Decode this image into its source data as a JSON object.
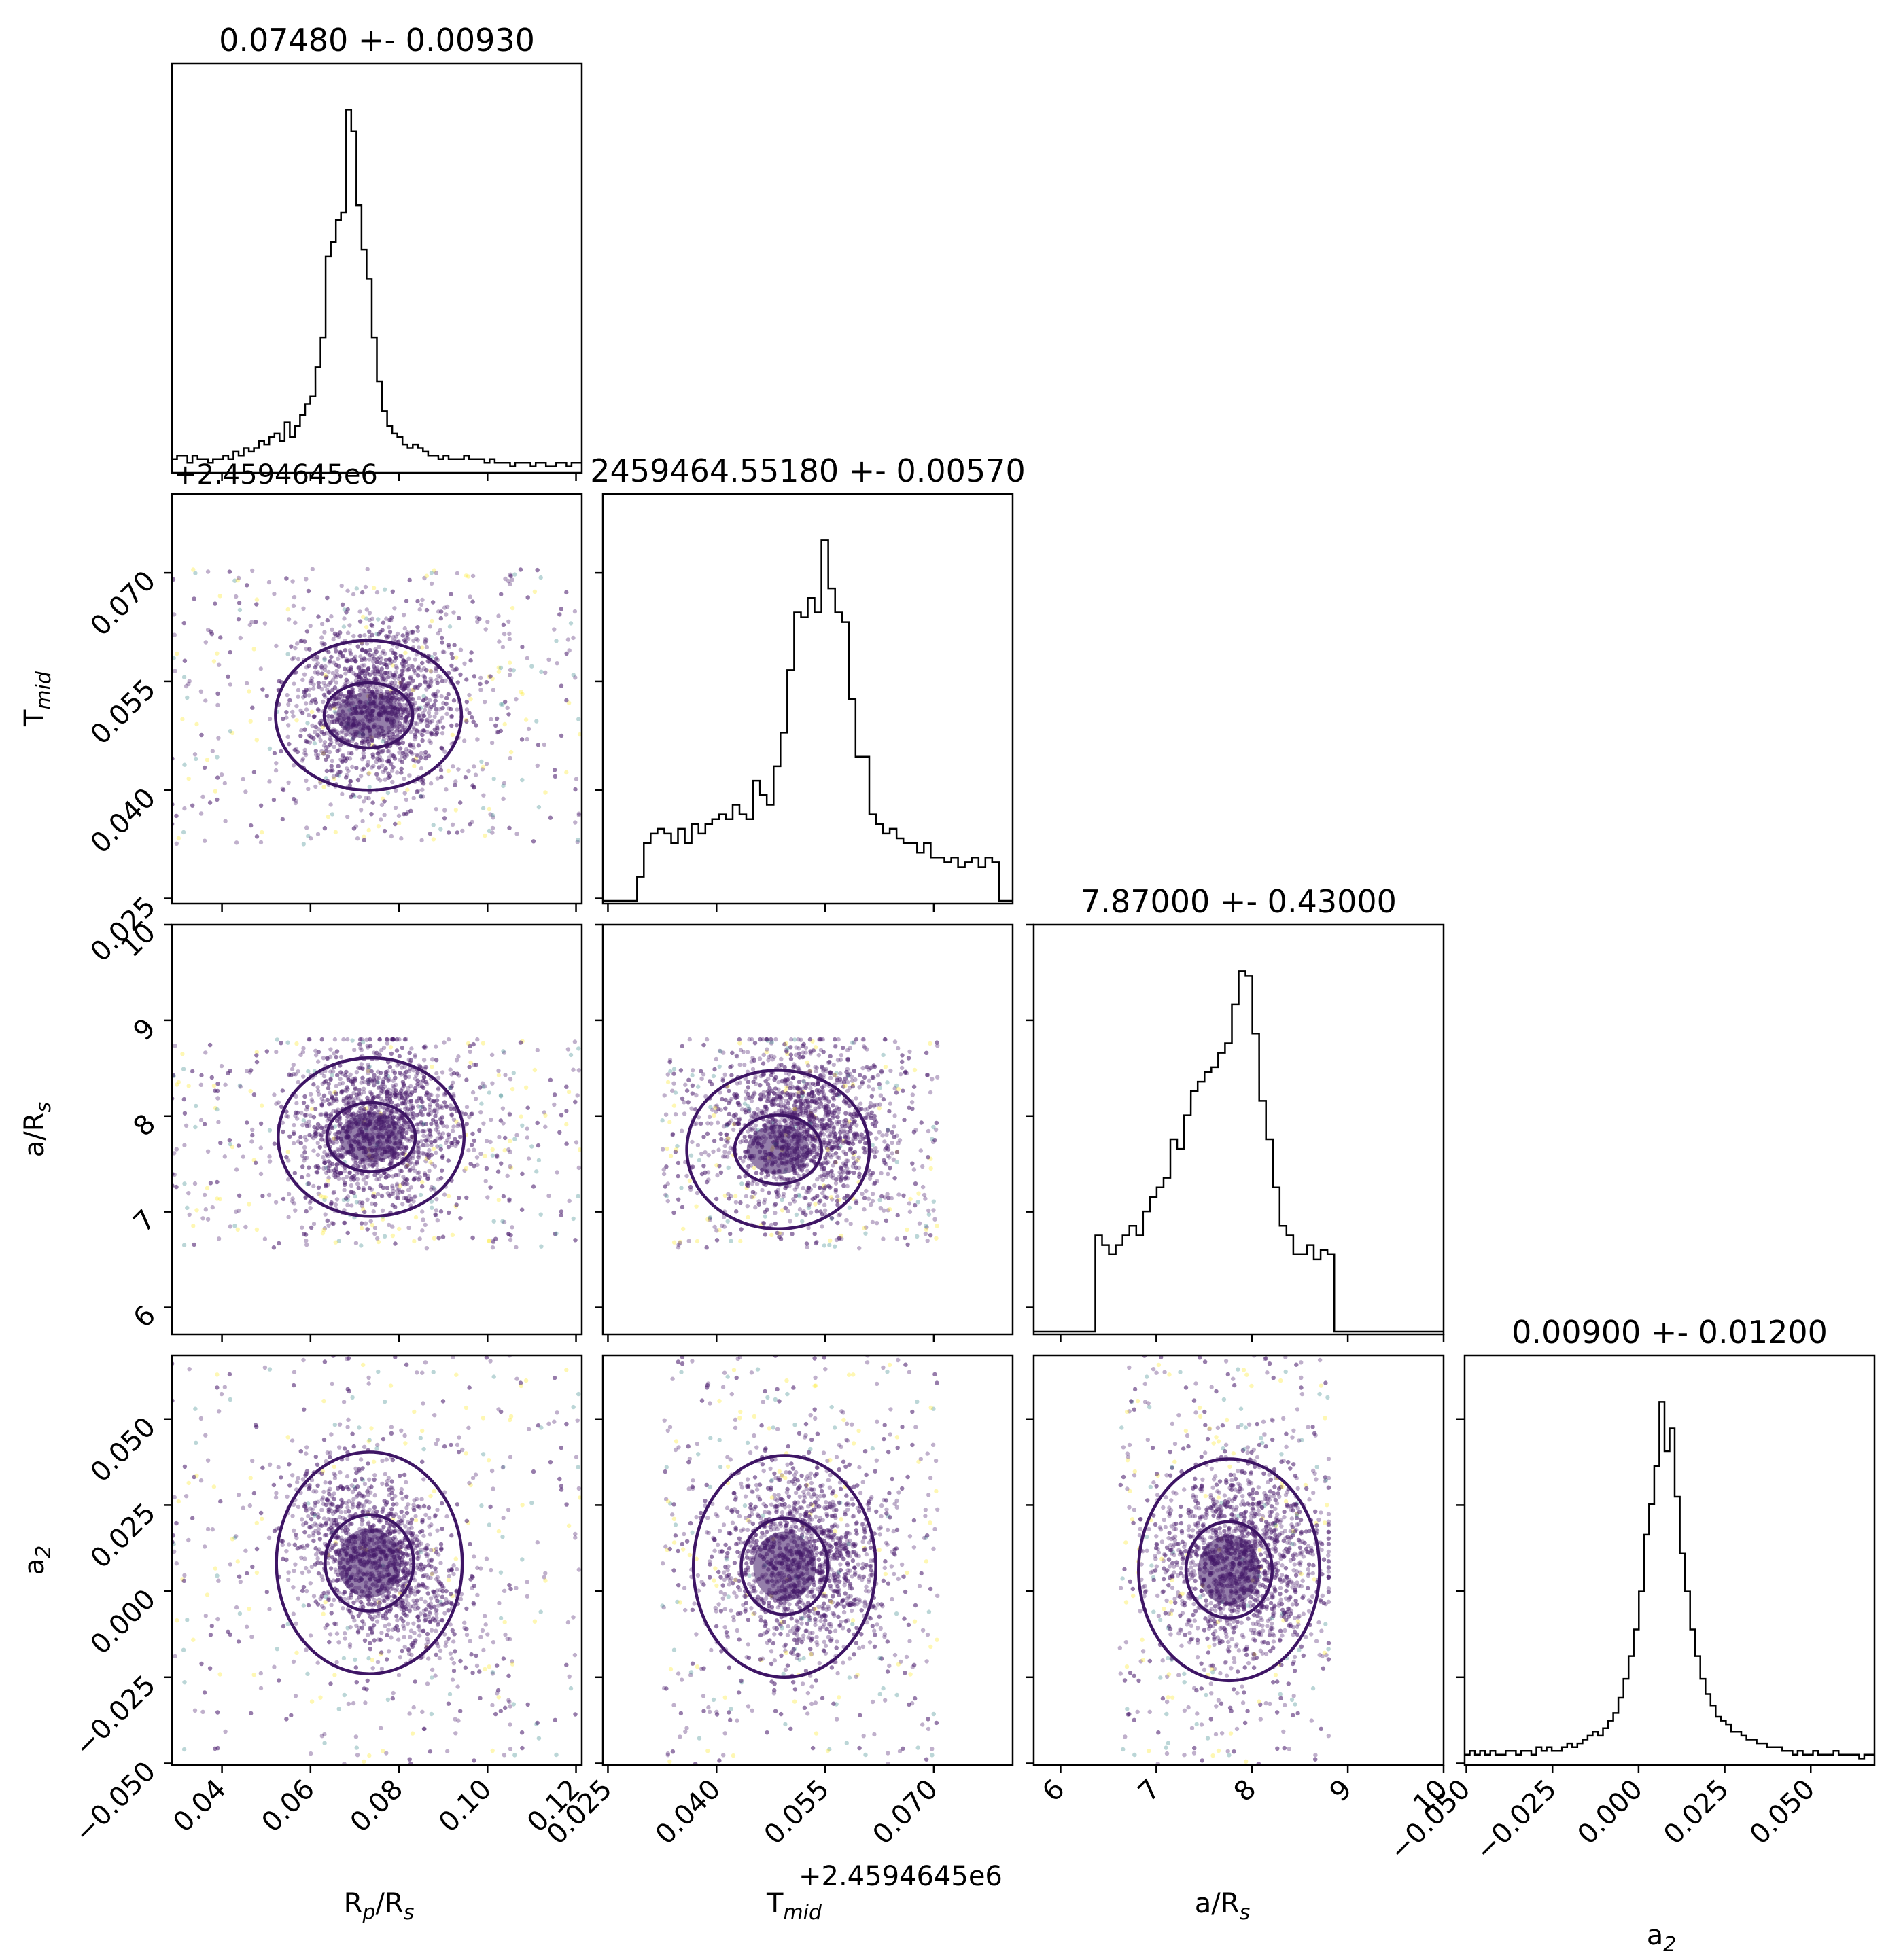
{
  "chart_data": {
    "type": "corner",
    "parameters": [
      {
        "key": "rp",
        "label": "R_p/R_s",
        "label_main": "R",
        "label_sub": "p",
        "label_tail": "/R",
        "label_tail_sub": "s",
        "range": [
          0.0287,
          0.1213
        ],
        "ticks": [
          "0.04",
          "0.06",
          "0.08",
          "0.10",
          "0.12"
        ],
        "tick_values": [
          0.04,
          0.06,
          0.08,
          0.1,
          0.12
        ],
        "title": "0.07480 +- 0.00930",
        "mean": 0.0748,
        "sd": 0.0093
      },
      {
        "key": "tmid",
        "label": "T_mid",
        "label_main": "T",
        "label_sub": "mid",
        "label_tail": "",
        "label_tail_sub": "",
        "range": [
          0.0243,
          0.0809
        ],
        "ticks": [
          "0.025",
          "0.040",
          "0.055",
          "0.070"
        ],
        "tick_values": [
          0.025,
          0.04,
          0.055,
          0.07
        ],
        "offset": "+2.4594645e6",
        "title": "2459464.55180 +- 0.00570",
        "mean": 0.0518,
        "sd": 0.0057
      },
      {
        "key": "ars",
        "label": "a/R_s",
        "label_main": "a/R",
        "label_sub": "s",
        "label_tail": "",
        "label_tail_sub": "",
        "range": [
          5.72,
          10.0
        ],
        "ticks": [
          "6",
          "7",
          "8",
          "9",
          "10"
        ],
        "tick_values": [
          6,
          7,
          8,
          9,
          10
        ],
        "title": "7.87000 +- 0.43000",
        "mean": 7.87,
        "sd": 0.43
      },
      {
        "key": "a2",
        "label": "a_2",
        "label_main": "a",
        "label_sub": "2",
        "label_tail": "",
        "label_tail_sub": "",
        "range": [
          -0.0505,
          0.0685
        ],
        "ticks": [
          "−0.050",
          "−0.025",
          "0.000",
          "0.025",
          "0.050"
        ],
        "tick_values": [
          -0.05,
          -0.025,
          0.0,
          0.025,
          0.05
        ],
        "title": "0.00900 +- 0.01200",
        "mean": 0.009,
        "sd": 0.012
      }
    ],
    "marginals": [
      {
        "param": "rp",
        "bins": 80,
        "range": [
          0.0287,
          0.1213
        ],
        "values": [
          3,
          4,
          4,
          2,
          4,
          3,
          3,
          2,
          3,
          3,
          4,
          3,
          5,
          4,
          6,
          5,
          6,
          8,
          7,
          9,
          10,
          8,
          13,
          9,
          12,
          15,
          18,
          20,
          28,
          36,
          58,
          62,
          68,
          70,
          98,
          92,
          72,
          60,
          52,
          36,
          24,
          16,
          12,
          10,
          9,
          7,
          6,
          7,
          6,
          5,
          4,
          4,
          3,
          4,
          3,
          3,
          3,
          4,
          3,
          3,
          3,
          2,
          3,
          2,
          2,
          2,
          1,
          2,
          2,
          2,
          1,
          2,
          2,
          1,
          1,
          2,
          2,
          1,
          2,
          2
        ]
      },
      {
        "param": "tmid",
        "bins": 60,
        "range": [
          0.0243,
          0.0809
        ],
        "values": [
          0,
          0,
          0,
          0,
          0,
          5,
          12,
          14,
          15,
          14,
          12,
          15,
          12,
          16,
          14,
          16,
          17,
          18,
          17,
          20,
          18,
          17,
          25,
          22,
          20,
          28,
          35,
          48,
          60,
          59,
          63,
          60,
          75,
          65,
          60,
          58,
          42,
          30,
          30,
          18,
          16,
          14,
          15,
          13,
          12,
          12,
          10,
          12,
          9,
          9,
          8,
          9,
          7,
          8,
          9,
          7,
          9,
          8,
          0,
          0
        ]
      },
      {
        "param": "ars",
        "bins": 60,
        "range": [
          5.72,
          10.0
        ],
        "values": [
          0,
          0,
          0,
          0,
          0,
          0,
          0,
          0,
          0,
          20,
          18,
          16,
          18,
          20,
          22,
          20,
          25,
          28,
          30,
          32,
          40,
          38,
          45,
          50,
          52,
          54,
          55,
          58,
          60,
          68,
          75,
          74,
          62,
          48,
          40,
          30,
          22,
          20,
          16,
          16,
          18,
          15,
          17,
          16,
          0,
          0,
          0,
          0,
          0,
          0,
          0,
          0,
          0,
          0,
          0,
          0,
          0,
          0,
          0,
          0
        ]
      },
      {
        "param": "a2",
        "bins": 80,
        "range": [
          -0.0505,
          0.0685
        ],
        "values": [
          2,
          3,
          2,
          3,
          2,
          3,
          2,
          2,
          3,
          3,
          2,
          3,
          3,
          2,
          4,
          3,
          4,
          3,
          3,
          4,
          5,
          4,
          5,
          6,
          7,
          8,
          7,
          9,
          11,
          13,
          17,
          22,
          28,
          35,
          45,
          60,
          68,
          78,
          95,
          82,
          88,
          70,
          55,
          45,
          35,
          28,
          22,
          18,
          15,
          12,
          11,
          10,
          8,
          8,
          7,
          6,
          6,
          5,
          5,
          4,
          4,
          4,
          3,
          3,
          2,
          3,
          2,
          2,
          3,
          2,
          2,
          2,
          3,
          2,
          2,
          2,
          2,
          1,
          2,
          2
        ]
      }
    ],
    "scatter_panels": [
      {
        "x": "rp",
        "y": "tmid",
        "center": [
          0.0731,
          0.0503
        ]
      },
      {
        "x": "rp",
        "y": "ars",
        "center": [
          0.0737,
          7.78
        ]
      },
      {
        "x": "tmid",
        "y": "ars",
        "center": [
          0.0485,
          7.65
        ]
      },
      {
        "x": "rp",
        "y": "a2",
        "center": [
          0.0733,
          0.0082
        ]
      },
      {
        "x": "tmid",
        "y": "a2",
        "center": [
          0.0494,
          0.0072
        ]
      },
      {
        "x": "ars",
        "y": "a2",
        "center": [
          7.76,
          0.0062
        ]
      }
    ],
    "colors": {
      "hist": "#000000",
      "contour": "#3e1565",
      "point_dark": "#4a1e6e",
      "point_light": "#fde725",
      "point_mid": "#3b8a8c"
    },
    "grid": false,
    "legend": "none"
  }
}
